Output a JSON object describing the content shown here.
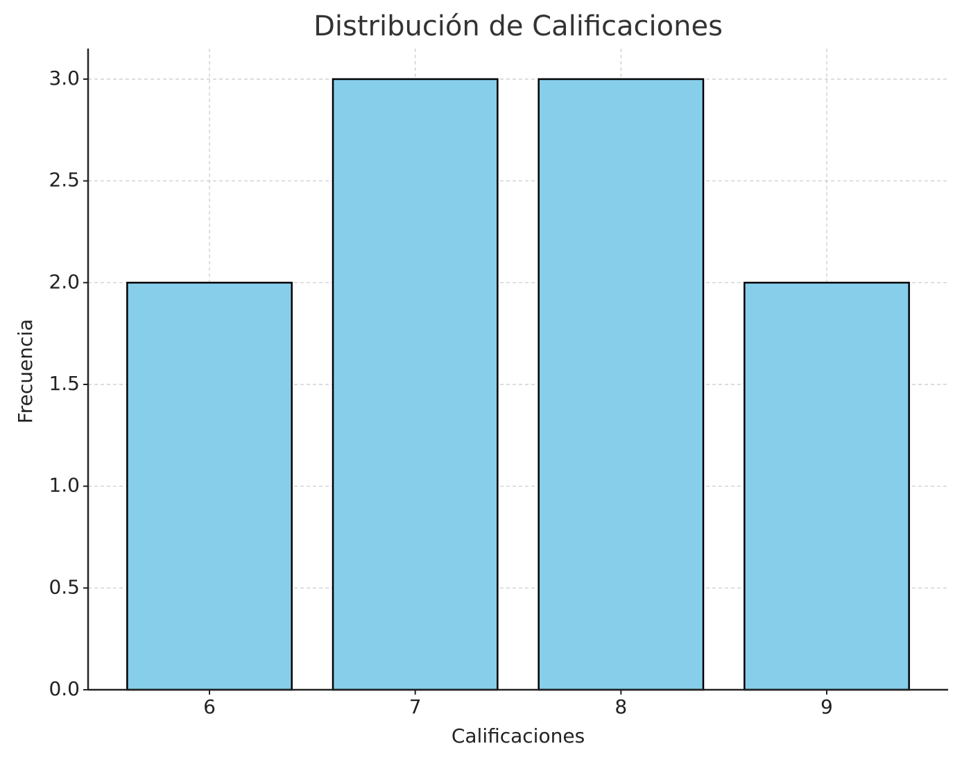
{
  "chart_data": {
    "type": "bar",
    "title": "Distribución de Calificaciones",
    "x_label": "Calificaciones",
    "y_label": "Frecuencia",
    "x": [
      6,
      7,
      8,
      9
    ],
    "values": [
      2,
      3,
      3,
      2
    ],
    "color": "#87ceeb",
    "edgecolor": "#000000",
    "xlim": [
      5.41,
      9.59
    ],
    "xticks": [
      6,
      7,
      8,
      9
    ],
    "ylim": [
      0,
      3.15
    ],
    "yticks": [
      {
        "value": 0,
        "label": "0.0"
      },
      {
        "value": 0.5,
        "label": "0.5"
      },
      {
        "value": 1,
        "label": "1.0"
      },
      {
        "value": 1.5,
        "label": "1.5"
      },
      {
        "value": 2,
        "label": "2.0"
      },
      {
        "value": 2.5,
        "label": "2.5"
      },
      {
        "value": 3,
        "label": "3.0"
      }
    ],
    "grid": true
  }
}
